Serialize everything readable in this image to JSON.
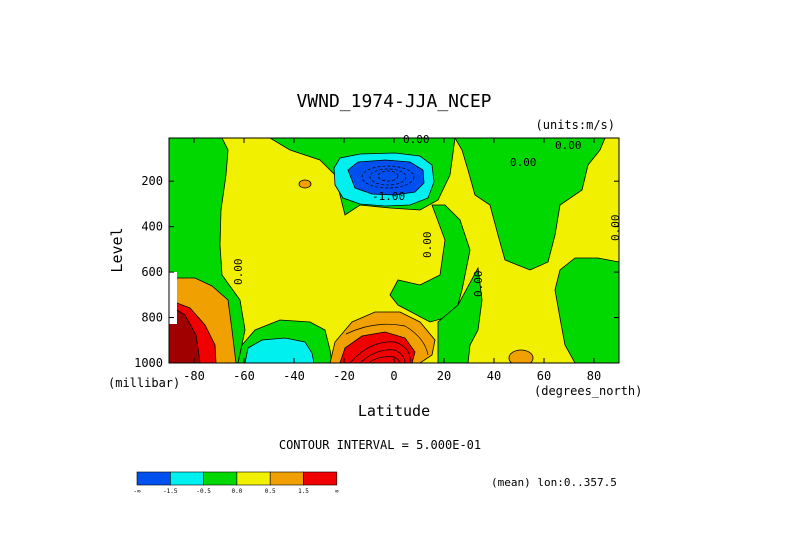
{
  "chart_data": {
    "type": "contour",
    "title": "VWND_1974-JJA_NCEP",
    "units_label": "(units:m/s)",
    "xlabel": "Latitude",
    "ylabel": "Level",
    "x_unit_label": "(degrees_north)",
    "y_unit_label": "(millibar)",
    "xlim": [
      -90,
      90
    ],
    "ylim": [
      1000,
      10
    ],
    "x_ticks": [
      -80,
      -60,
      -40,
      -20,
      0,
      20,
      40,
      60,
      80
    ],
    "y_ticks": [
      200,
      400,
      600,
      800,
      1000
    ],
    "contour_interval_label": "CONTOUR INTERVAL = 5.000E-01",
    "mean_label": "(mean) lon:0..357.5",
    "contour_labels": [
      "0.00",
      "0.00",
      "0.00",
      "0.00",
      "0.00",
      "0.00",
      "0.00",
      "-1.00"
    ],
    "colorbar": {
      "colors": [
        "#0050f0",
        "#00f0f0",
        "#00d800",
        "#f0f000",
        "#f0a000",
        "#f00000"
      ],
      "tick_labels": [
        "-∞",
        "-1.5",
        "-0.5",
        "0.0",
        "0.5",
        "1.5",
        "∞"
      ]
    }
  }
}
